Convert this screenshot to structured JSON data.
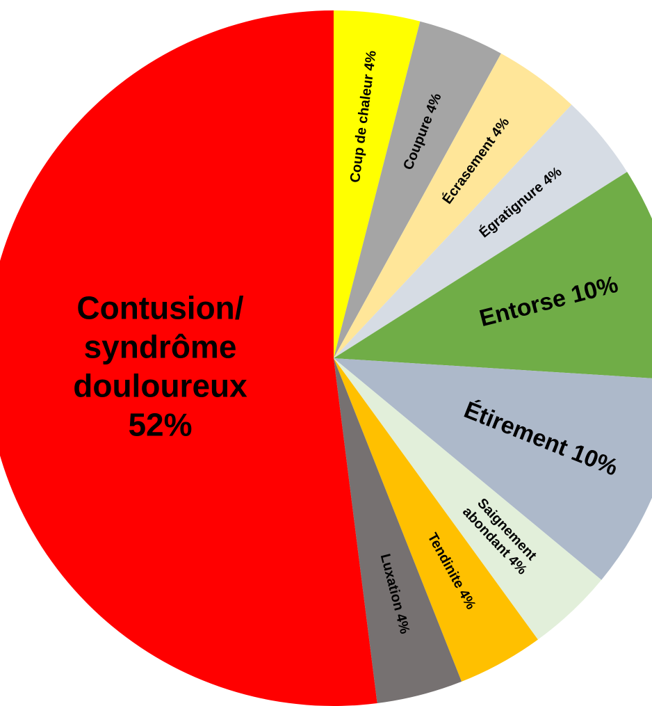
{
  "chart_data": {
    "type": "pie",
    "categories": [
      "Coup de chaleur",
      "Coupure",
      "Écrasement",
      "Égratignure",
      "Entorse",
      "Étirement",
      [
        "Saignement",
        "abondant"
      ],
      "Tendinite",
      "Luxation",
      [
        "Contusion/",
        "syndrôme",
        "douloureux"
      ]
    ],
    "values": [
      4,
      4,
      4,
      4,
      10,
      10,
      4,
      4,
      4,
      52
    ],
    "value_labels": [
      "4%",
      "4%",
      "4%",
      "4%",
      "10%",
      "10%",
      "4%",
      "4%",
      "4%",
      "52%"
    ],
    "colors": [
      "#ffff00",
      "#a5a5a5",
      "#ffe699",
      "#d6dce4",
      "#70ad47",
      "#adb9ca",
      "#e2efda",
      "#ffc000",
      "#767171",
      "#ff0000"
    ]
  }
}
